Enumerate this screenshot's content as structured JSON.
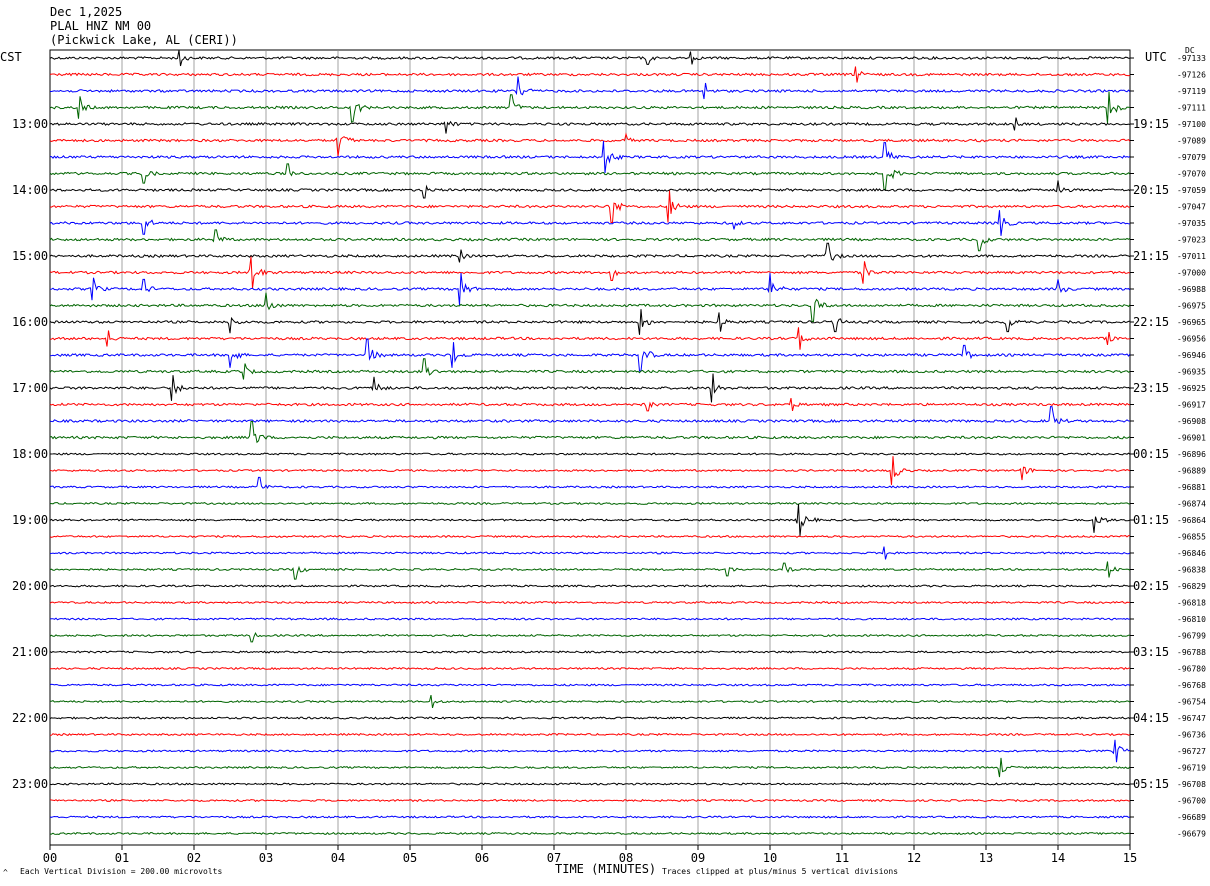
{
  "header": {
    "date": "Dec 1,2025",
    "station": "PLAL HNZ NM 00",
    "location": "(Pickwick Lake, AL (CERI))"
  },
  "left_zone": "CST",
  "right_zone": "UTC",
  "dc_label": "DC",
  "footer": {
    "scale_note": "Each Vertical Division =  200.00 microvolts",
    "xaxis_title": "TIME (MINUTES)",
    "clip_note": "Traces clipped at plus/minus 5 vertical divisions",
    "corner_mark": "^"
  },
  "chart_data": {
    "type": "line",
    "title": "PLAL HNZ NM 00",
    "xlabel": "TIME (MINUTES)",
    "xlim": [
      0,
      15
    ],
    "x_ticks": [
      "00",
      "01",
      "02",
      "03",
      "04",
      "05",
      "06",
      "07",
      "08",
      "09",
      "10",
      "11",
      "12",
      "13",
      "14",
      "15"
    ],
    "trace_colors": [
      "#000000",
      "#ff0000",
      "#0000ff",
      "#006400"
    ],
    "grid": true,
    "left_time_labels": [
      "13:00",
      "14:00",
      "15:00",
      "16:00",
      "17:00",
      "18:00",
      "19:00",
      "20:00",
      "21:00",
      "22:00",
      "23:00"
    ],
    "right_time_labels": [
      "19:15",
      "20:15",
      "21:15",
      "22:15",
      "23:15",
      "00:15",
      "01:15",
      "02:15",
      "03:15",
      "04:15",
      "05:15"
    ],
    "dc_offsets": [
      -97133,
      -97126,
      -97119,
      -97111,
      -97100,
      -97089,
      -97079,
      -97070,
      -97059,
      -97047,
      -97035,
      -97023,
      -97011,
      -97000,
      -96988,
      -96975,
      -96965,
      -96956,
      -96946,
      -96935,
      -96925,
      -96917,
      -96908,
      -96901,
      -96896,
      -96889,
      -96881,
      -96874,
      -96864,
      -96855,
      -96846,
      -96838,
      -96829,
      -96818,
      -96810,
      -96799,
      -96788,
      -96780,
      -96768,
      -96754,
      -96747,
      -96736,
      -96727,
      -96719,
      -96708,
      -96700,
      -96689,
      -96679
    ],
    "events": [
      {
        "trace": 0,
        "minute": 1.8,
        "amp": 0.5
      },
      {
        "trace": 0,
        "minute": 8.3,
        "amp": 0.4
      },
      {
        "trace": 0,
        "minute": 8.9,
        "amp": 0.4
      },
      {
        "trace": 1,
        "minute": 11.2,
        "amp": 0.5
      },
      {
        "trace": 2,
        "minute": 6.5,
        "amp": 0.9
      },
      {
        "trace": 2,
        "minute": 9.1,
        "amp": 0.5
      },
      {
        "trace": 3,
        "minute": 0.4,
        "amp": 0.7
      },
      {
        "trace": 3,
        "minute": 4.2,
        "amp": 0.9
      },
      {
        "trace": 3,
        "minute": 6.4,
        "amp": 0.8
      },
      {
        "trace": 3,
        "minute": 14.7,
        "amp": 1.0
      },
      {
        "trace": 4,
        "minute": 5.5,
        "amp": 0.6
      },
      {
        "trace": 4,
        "minute": 13.4,
        "amp": 0.4
      },
      {
        "trace": 5,
        "minute": 4.0,
        "amp": 1.0
      },
      {
        "trace": 5,
        "minute": 8.0,
        "amp": 0.4
      },
      {
        "trace": 6,
        "minute": 7.7,
        "amp": 1.0
      },
      {
        "trace": 6,
        "minute": 11.6,
        "amp": 0.9
      },
      {
        "trace": 7,
        "minute": 1.3,
        "amp": 0.6
      },
      {
        "trace": 7,
        "minute": 3.3,
        "amp": 0.6
      },
      {
        "trace": 7,
        "minute": 11.6,
        "amp": 1.0
      },
      {
        "trace": 8,
        "minute": 5.2,
        "amp": 0.5
      },
      {
        "trace": 8,
        "minute": 14.0,
        "amp": 0.6
      },
      {
        "trace": 9,
        "minute": 7.8,
        "amp": 1.0
      },
      {
        "trace": 9,
        "minute": 8.6,
        "amp": 1.0
      },
      {
        "trace": 10,
        "minute": 1.3,
        "amp": 0.7
      },
      {
        "trace": 10,
        "minute": 9.5,
        "amp": 0.4
      },
      {
        "trace": 10,
        "minute": 13.2,
        "amp": 0.8
      },
      {
        "trace": 11,
        "minute": 2.3,
        "amp": 0.6
      },
      {
        "trace": 11,
        "minute": 12.9,
        "amp": 0.7
      },
      {
        "trace": 12,
        "minute": 5.7,
        "amp": 0.4
      },
      {
        "trace": 12,
        "minute": 10.8,
        "amp": 0.8
      },
      {
        "trace": 13,
        "minute": 2.8,
        "amp": 1.0
      },
      {
        "trace": 13,
        "minute": 7.8,
        "amp": 0.5
      },
      {
        "trace": 13,
        "minute": 11.3,
        "amp": 0.7
      },
      {
        "trace": 14,
        "minute": 0.6,
        "amp": 0.7
      },
      {
        "trace": 14,
        "minute": 1.3,
        "amp": 0.6
      },
      {
        "trace": 14,
        "minute": 5.7,
        "amp": 1.0
      },
      {
        "trace": 14,
        "minute": 10.0,
        "amp": 1.0
      },
      {
        "trace": 14,
        "minute": 14.0,
        "amp": 0.6
      },
      {
        "trace": 15,
        "minute": 3.0,
        "amp": 0.8
      },
      {
        "trace": 15,
        "minute": 10.6,
        "amp": 1.0
      },
      {
        "trace": 16,
        "minute": 2.5,
        "amp": 0.7
      },
      {
        "trace": 16,
        "minute": 8.2,
        "amp": 0.8
      },
      {
        "trace": 16,
        "minute": 9.3,
        "amp": 0.6
      },
      {
        "trace": 16,
        "minute": 10.9,
        "amp": 0.6
      },
      {
        "trace": 16,
        "minute": 13.3,
        "amp": 0.6
      },
      {
        "trace": 17,
        "minute": 0.8,
        "amp": 0.5
      },
      {
        "trace": 17,
        "minute": 10.4,
        "amp": 0.7
      },
      {
        "trace": 17,
        "minute": 14.7,
        "amp": 0.4
      },
      {
        "trace": 18,
        "minute": 2.5,
        "amp": 0.8
      },
      {
        "trace": 18,
        "minute": 4.4,
        "amp": 1.0
      },
      {
        "trace": 18,
        "minute": 5.6,
        "amp": 0.8
      },
      {
        "trace": 18,
        "minute": 8.2,
        "amp": 1.0
      },
      {
        "trace": 18,
        "minute": 12.7,
        "amp": 0.6
      },
      {
        "trace": 19,
        "minute": 2.7,
        "amp": 0.5
      },
      {
        "trace": 19,
        "minute": 5.2,
        "amp": 0.8
      },
      {
        "trace": 20,
        "minute": 1.7,
        "amp": 0.8
      },
      {
        "trace": 20,
        "minute": 4.5,
        "amp": 0.7
      },
      {
        "trace": 20,
        "minute": 9.2,
        "amp": 0.9
      },
      {
        "trace": 21,
        "minute": 8.3,
        "amp": 0.4
      },
      {
        "trace": 21,
        "minute": 10.3,
        "amp": 0.4
      },
      {
        "trace": 22,
        "minute": 13.9,
        "amp": 0.9
      },
      {
        "trace": 23,
        "minute": 2.8,
        "amp": 1.0
      },
      {
        "trace": 25,
        "minute": 11.7,
        "amp": 0.9
      },
      {
        "trace": 25,
        "minute": 13.5,
        "amp": 0.6
      },
      {
        "trace": 26,
        "minute": 2.9,
        "amp": 0.6
      },
      {
        "trace": 28,
        "minute": 10.4,
        "amp": 1.0
      },
      {
        "trace": 28,
        "minute": 14.5,
        "amp": 0.8
      },
      {
        "trace": 30,
        "minute": 11.6,
        "amp": 0.4
      },
      {
        "trace": 31,
        "minute": 3.4,
        "amp": 0.6
      },
      {
        "trace": 31,
        "minute": 9.4,
        "amp": 0.4
      },
      {
        "trace": 31,
        "minute": 10.2,
        "amp": 0.4
      },
      {
        "trace": 31,
        "minute": 14.7,
        "amp": 0.5
      },
      {
        "trace": 35,
        "minute": 2.8,
        "amp": 0.4
      },
      {
        "trace": 39,
        "minute": 5.3,
        "amp": 0.4
      },
      {
        "trace": 42,
        "minute": 14.8,
        "amp": 0.7
      },
      {
        "trace": 43,
        "minute": 13.2,
        "amp": 0.6
      }
    ]
  }
}
